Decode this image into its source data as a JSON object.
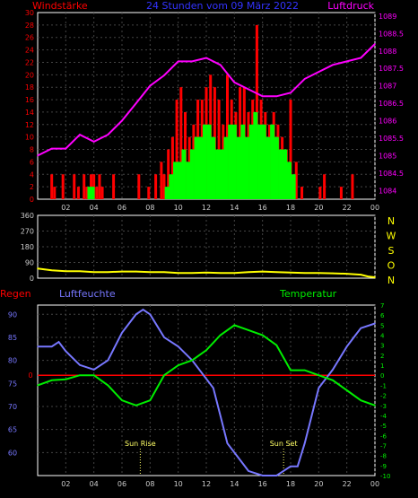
{
  "header": {
    "left_label": "Windstärke",
    "title": "24 Stunden vom 09 März 2022",
    "right_label": "Luftdruck"
  },
  "panel2": {
    "direction_labels": [
      "N",
      "W",
      "S",
      "O",
      "N"
    ]
  },
  "panel3": {
    "regen_label": "Regen",
    "feuchte_label": "Luftfeuchte",
    "temp_label": "Temperatur",
    "sunrise_label": "Sun Rise",
    "sunset_label": "Sun Set"
  },
  "colors": {
    "wind_gust": "#ff0000",
    "wind_avg": "#00ff00",
    "pressure": "#ff00ff",
    "direction": "#ffff00",
    "humidity": "#7777ff",
    "temperature": "#00ee00",
    "zero_line": "#ff0000",
    "grid": "#444444",
    "frame": "#ffffff"
  },
  "chart_data": [
    {
      "type": "bar",
      "title": "24 Stunden vom 09 März 2022",
      "x_ticks": [
        "02",
        "04",
        "06",
        "08",
        "10",
        "12",
        "14",
        "16",
        "18",
        "20",
        "22",
        "00"
      ],
      "y_left": {
        "label": "Windstärke",
        "min": 0,
        "max": 30,
        "ticks": [
          0,
          2,
          4,
          6,
          8,
          10,
          12,
          14,
          16,
          18,
          20,
          22,
          24,
          26,
          28,
          30
        ]
      },
      "y_right": {
        "label": "Luftdruck",
        "min": 1083.75,
        "max": 1089.1,
        "ticks": [
          "1084",
          "1084.5",
          "1085",
          "1085.5",
          "1086",
          "1086.5",
          "1087",
          "1087.5",
          "1088",
          "1088.5",
          "1089"
        ]
      },
      "series": [
        {
          "name": "Böen",
          "x": [
            1.0,
            1.2,
            1.8,
            2.6,
            2.9,
            3.3,
            3.5,
            3.8,
            4.0,
            4.2,
            4.4,
            4.6,
            5.4,
            7.2,
            7.9,
            8.4,
            8.8,
            9.0,
            9.3,
            9.6,
            9.9,
            10.2,
            10.5,
            10.8,
            11.1,
            11.4,
            11.7,
            12.0,
            12.3,
            12.6,
            12.9,
            13.2,
            13.5,
            13.8,
            14.1,
            14.4,
            14.7,
            15.0,
            15.3,
            15.6,
            15.9,
            16.2,
            16.5,
            16.8,
            17.1,
            17.4,
            17.7,
            18.0,
            18.4,
            18.8,
            20.1,
            20.4,
            21.6,
            22.4
          ],
          "y": [
            4,
            2,
            4,
            4,
            2,
            4,
            2,
            4,
            4,
            2,
            4,
            2,
            4,
            4,
            2,
            4,
            6,
            4,
            8,
            10,
            16,
            18,
            14,
            10,
            12,
            16,
            16,
            18,
            20,
            18,
            16,
            12,
            20,
            16,
            14,
            18,
            18,
            14,
            16,
            28,
            16,
            14,
            12,
            14,
            12,
            10,
            8,
            16,
            6,
            2,
            2,
            4,
            2,
            4
          ]
        },
        {
          "name": "Mittel",
          "x": [
            3.7,
            3.9,
            9.2,
            9.5,
            9.8,
            10.1,
            10.4,
            10.7,
            11.0,
            11.3,
            11.6,
            11.9,
            12.2,
            12.5,
            12.8,
            13.1,
            13.4,
            13.7,
            14.0,
            14.3,
            14.6,
            14.9,
            15.2,
            15.5,
            15.8,
            16.1,
            16.4,
            16.7,
            17.0,
            17.3,
            17.6,
            17.9,
            18.2
          ],
          "y": [
            2,
            2,
            2,
            4,
            6,
            6,
            8,
            6,
            8,
            10,
            10,
            12,
            12,
            10,
            8,
            8,
            10,
            12,
            12,
            10,
            12,
            10,
            12,
            14,
            12,
            12,
            10,
            12,
            10,
            8,
            8,
            6,
            4
          ]
        },
        {
          "name": "Luftdruck",
          "x": [
            0,
            1,
            2,
            3,
            4,
            5,
            6,
            7,
            8,
            9,
            10,
            11,
            12,
            13,
            14,
            15,
            16,
            17,
            18,
            19,
            20,
            21,
            22,
            23,
            24
          ],
          "y": [
            1085.0,
            1085.2,
            1085.2,
            1085.6,
            1085.4,
            1085.6,
            1086.0,
            1086.5,
            1087.0,
            1087.3,
            1087.7,
            1087.7,
            1087.8,
            1087.6,
            1087.1,
            1086.9,
            1086.7,
            1086.7,
            1086.8,
            1087.2,
            1087.4,
            1087.6,
            1087.7,
            1087.8,
            1088.2
          ]
        }
      ]
    },
    {
      "type": "line",
      "x_ticks": [],
      "y_left": {
        "min": 0,
        "max": 360,
        "ticks": [
          "0",
          "90",
          "180",
          "270",
          "360"
        ]
      },
      "y_right": {
        "ticks": [
          "N",
          "W",
          "S",
          "O",
          "N"
        ]
      },
      "series": [
        {
          "name": "Windrichtung",
          "x": [
            0,
            0.5,
            1,
            2,
            3,
            4,
            5,
            6,
            7,
            8,
            9,
            10,
            11,
            12,
            13,
            14,
            15,
            16,
            17,
            18,
            19,
            20,
            21,
            22,
            23,
            23.5,
            24
          ],
          "y": [
            55,
            50,
            45,
            40,
            40,
            35,
            35,
            38,
            38,
            35,
            35,
            30,
            30,
            32,
            30,
            30,
            35,
            38,
            35,
            32,
            30,
            30,
            28,
            25,
            20,
            10,
            5
          ]
        }
      ]
    },
    {
      "type": "line",
      "x_ticks": [
        "02",
        "04",
        "06",
        "08",
        "10",
        "12",
        "14",
        "16",
        "18",
        "20",
        "22",
        "00"
      ],
      "y_left": {
        "label": "Luftfeuchte",
        "min": 55,
        "max": 92,
        "ticks": [
          "60",
          "65",
          "70",
          "75",
          "80",
          "85",
          "90"
        ]
      },
      "y_right": {
        "label": "Temperatur",
        "min": -10,
        "max": 7,
        "ticks": [
          "-10",
          "-9",
          "-8",
          "-7",
          "-6",
          "-5",
          "-4",
          "-3",
          "-2",
          "-1",
          "0",
          "1",
          "2",
          "3",
          "4",
          "5",
          "6",
          "7"
        ]
      },
      "annotations": [
        {
          "label": "Sun Rise",
          "x": 7.3
        },
        {
          "label": "Sun Set",
          "x": 17.5
        }
      ],
      "series": [
        {
          "name": "Luftfeuchte",
          "x": [
            0,
            1,
            1.5,
            2,
            3,
            4,
            5,
            6,
            7,
            7.5,
            8,
            9,
            10,
            11,
            12,
            12.5,
            13,
            13.5,
            14,
            14.5,
            15,
            16,
            17,
            18,
            18.5,
            19,
            19.5,
            20,
            21,
            22,
            22.5,
            23,
            24
          ],
          "y": [
            83,
            83,
            84,
            82,
            79,
            78,
            80,
            86,
            90,
            91,
            90,
            85,
            83,
            80,
            76,
            74,
            68,
            62,
            60,
            58,
            56,
            55,
            55,
            57,
            57,
            62,
            68,
            74,
            78,
            83,
            85,
            87,
            88
          ]
        },
        {
          "name": "Temperatur",
          "x": [
            0,
            1,
            2,
            3,
            4,
            5,
            6,
            7,
            8,
            9,
            10,
            11,
            12,
            13,
            14,
            15,
            16,
            17,
            18,
            19,
            20,
            21,
            22,
            23,
            24
          ],
          "y": [
            -1.0,
            -0.5,
            -0.4,
            0.0,
            0.0,
            -1.0,
            -2.5,
            -3.0,
            -2.5,
            0.0,
            1.0,
            1.5,
            2.5,
            4.0,
            5.0,
            4.5,
            4.0,
            3.0,
            0.5,
            0.5,
            0.0,
            -0.5,
            -1.5,
            -2.5,
            -3.0
          ]
        }
      ]
    }
  ]
}
